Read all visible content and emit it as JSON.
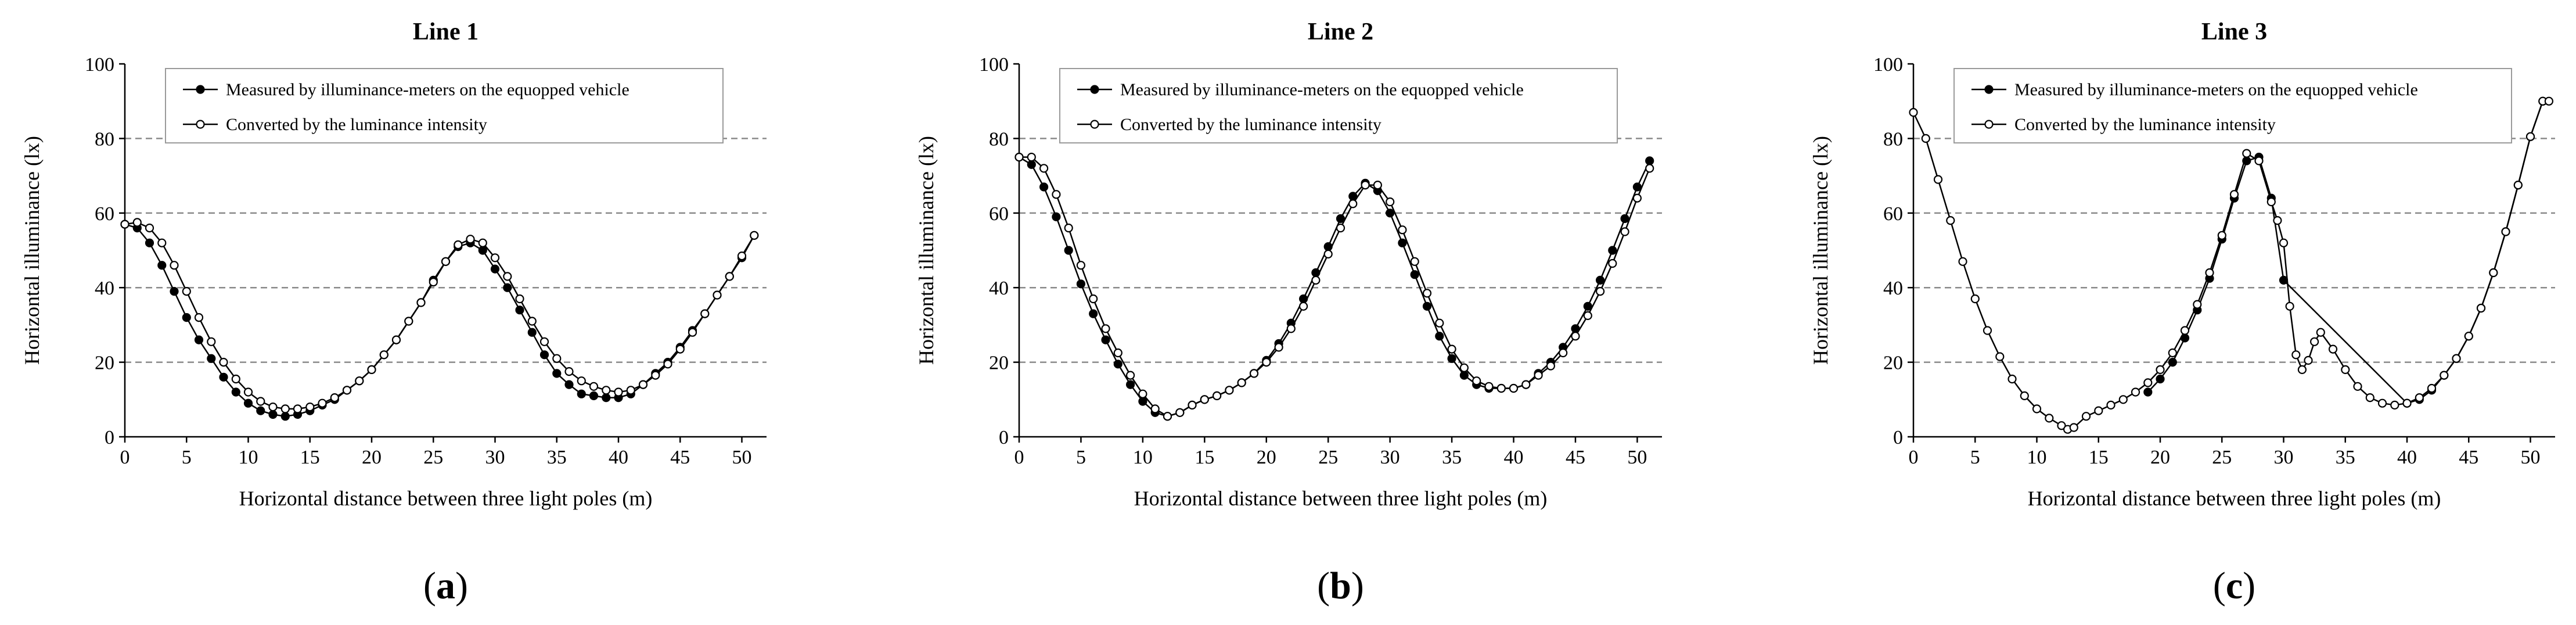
{
  "chart_data": [
    {
      "type": "line",
      "title": "Line 1",
      "panel_label": "a",
      "xlabel": "Horizontal distance between three light poles (m)",
      "ylabel": "Horizontal illuminance  (lx)",
      "xlim": [
        0,
        52
      ],
      "ylim": [
        0,
        100
      ],
      "xticks": [
        0,
        5,
        10,
        15,
        20,
        25,
        30,
        35,
        40,
        45,
        50
      ],
      "yticks": [
        0,
        20,
        40,
        60,
        80,
        100
      ],
      "grid": "dashed horizontal at 20, 40, 60, 80",
      "legend_position": "top",
      "series": [
        {
          "name": "Measured by illuminance-meters on the equopped vehicle",
          "marker": "filled-circle",
          "x": [
            0,
            1,
            2,
            3,
            4,
            5,
            6,
            7,
            8,
            9,
            10,
            11,
            12,
            13,
            14,
            15,
            16,
            17,
            18,
            19,
            20,
            21,
            22,
            23,
            24,
            25,
            26,
            27,
            28,
            29,
            30,
            31,
            32,
            33,
            34,
            35,
            36,
            37,
            38,
            39,
            40,
            41,
            42,
            43,
            44,
            45,
            46,
            47,
            48,
            49,
            50,
            51
          ],
          "values": [
            57,
            56,
            52,
            46,
            39,
            32,
            26,
            21,
            16,
            12,
            9,
            7,
            6,
            5.5,
            6,
            7,
            8.5,
            10,
            12.5,
            15,
            18,
            22,
            26,
            31,
            36,
            42,
            47,
            51,
            52,
            50,
            45,
            40,
            34,
            28,
            22,
            17,
            14,
            11.5,
            11,
            10.5,
            10.5,
            11.5,
            14,
            17,
            20,
            24,
            28.5,
            33,
            38,
            43,
            48,
            54
          ]
        },
        {
          "name": "Converted by the luminance intensity",
          "marker": "open-circle",
          "x": [
            0,
            1,
            2,
            3,
            4,
            5,
            6,
            7,
            8,
            9,
            10,
            11,
            12,
            13,
            14,
            15,
            16,
            17,
            18,
            19,
            20,
            21,
            22,
            23,
            24,
            25,
            26,
            27,
            28,
            29,
            30,
            31,
            32,
            33,
            34,
            35,
            36,
            37,
            38,
            39,
            40,
            41,
            42,
            43,
            44,
            45,
            46,
            47,
            48,
            49,
            50,
            51
          ],
          "values": [
            57,
            57.5,
            56,
            52,
            46,
            39,
            32,
            25.5,
            20,
            15.5,
            12,
            9.5,
            8,
            7.5,
            7.5,
            8,
            9,
            10.5,
            12.5,
            15,
            18,
            22,
            26,
            31,
            36,
            41.5,
            47,
            51.5,
            53,
            52,
            48,
            43,
            37,
            31,
            25.5,
            21,
            17.5,
            15,
            13.5,
            12.5,
            12,
            12.5,
            14,
            16.5,
            19.5,
            23.5,
            28,
            33,
            38,
            43,
            48.5,
            54
          ]
        }
      ]
    },
    {
      "type": "line",
      "title": "Line 2",
      "panel_label": "b",
      "xlabel": "Horizontal distance between three light poles (m)",
      "ylabel": "Horizontal illuminance  (lx)",
      "xlim": [
        0,
        52
      ],
      "ylim": [
        0,
        100
      ],
      "xticks": [
        0,
        5,
        10,
        15,
        20,
        25,
        30,
        35,
        40,
        45,
        50
      ],
      "yticks": [
        0,
        20,
        40,
        60,
        80,
        100
      ],
      "grid": "dashed horizontal at 20, 40, 60, 80",
      "legend_position": "top",
      "series": [
        {
          "name": "Measured by illuminance-meters on the equopped vehicle",
          "marker": "filled-circle",
          "x": [
            0,
            1,
            2,
            3,
            4,
            5,
            6,
            7,
            8,
            9,
            10,
            11,
            12,
            13,
            14,
            15,
            16,
            17,
            18,
            19,
            20,
            21,
            22,
            23,
            24,
            25,
            26,
            27,
            28,
            29,
            30,
            31,
            32,
            33,
            34,
            35,
            36,
            37,
            38,
            39,
            40,
            41,
            42,
            43,
            44,
            45,
            46,
            47,
            48,
            49,
            50,
            51
          ],
          "values": [
            75,
            73,
            67,
            59,
            50,
            41,
            33,
            26,
            19.5,
            14,
            9.5,
            6.5,
            5.5,
            6.5,
            8.5,
            10,
            11,
            12.5,
            14.5,
            17,
            20.5,
            25,
            30.5,
            37,
            44,
            51,
            58.5,
            64.5,
            68,
            66,
            60,
            52,
            43.5,
            35,
            27,
            21,
            16.5,
            14,
            13,
            13,
            13,
            14,
            17,
            20,
            24,
            29,
            35,
            42,
            50,
            58.5,
            67,
            74
          ]
        },
        {
          "name": "Converted by the luminance intensity",
          "marker": "open-circle",
          "x": [
            0,
            1,
            2,
            3,
            4,
            5,
            6,
            7,
            8,
            9,
            10,
            11,
            12,
            13,
            14,
            15,
            16,
            17,
            18,
            19,
            20,
            21,
            22,
            23,
            24,
            25,
            26,
            27,
            28,
            29,
            30,
            31,
            32,
            33,
            34,
            35,
            36,
            37,
            38,
            39,
            40,
            41,
            42,
            43,
            44,
            45,
            46,
            47,
            48,
            49,
            50,
            51
          ],
          "values": [
            75,
            75,
            72,
            65,
            56,
            46,
            37,
            29,
            22.5,
            16.5,
            11.5,
            7.5,
            5.5,
            6.5,
            8.5,
            10,
            11,
            12.5,
            14.5,
            17,
            20,
            24,
            29,
            35,
            42,
            49,
            56,
            62.5,
            67.5,
            67.5,
            63,
            55.5,
            47,
            38.5,
            30.5,
            23.5,
            18.5,
            15,
            13.5,
            13,
            13,
            14,
            16.5,
            19,
            22.5,
            27,
            32.5,
            39,
            46.5,
            55,
            64,
            72
          ]
        }
      ]
    },
    {
      "type": "line",
      "title": "Line 3",
      "panel_label": "c",
      "xlabel": "Horizontal distance between three light poles (m)",
      "ylabel": "Horizontal illuminance  (lx)",
      "xlim": [
        0,
        52
      ],
      "ylim": [
        0,
        100
      ],
      "xticks": [
        0,
        5,
        10,
        15,
        20,
        25,
        30,
        35,
        40,
        45,
        50
      ],
      "yticks": [
        0,
        20,
        40,
        60,
        80,
        100
      ],
      "grid": "dashed horizontal at 20, 40, 60, 80",
      "legend_position": "top",
      "series": [
        {
          "name": "Measured by illuminance-meters on the equopped vehicle",
          "marker": "filled-circle",
          "x": [
            19,
            20,
            21,
            22,
            23,
            24,
            25,
            26,
            27,
            28,
            29,
            30,
            40,
            41,
            42,
            43,
            44,
            45,
            46,
            47,
            48,
            49,
            50,
            51
          ],
          "values": [
            12,
            15.5,
            20,
            26.5,
            34,
            42.5,
            53,
            64,
            74,
            75,
            64,
            42,
            9,
            10,
            12.5,
            16.5,
            21,
            27,
            34.5,
            44,
            55,
            67.5,
            80.5,
            90
          ]
        },
        {
          "name": "Converted by the luminance intensity",
          "marker": "open-circle",
          "x": [
            0,
            1,
            2,
            3,
            4,
            5,
            6,
            7,
            8,
            9,
            10,
            11,
            12,
            12.5,
            13,
            14,
            15,
            16,
            17,
            18,
            19,
            20,
            21,
            22,
            23,
            24,
            25,
            26,
            27,
            28,
            29,
            29.5,
            30,
            30.5,
            31,
            31.5,
            32,
            32.5,
            33,
            34,
            35,
            36,
            37,
            38,
            39,
            40,
            41,
            42,
            43,
            44,
            45,
            46,
            47,
            48,
            49,
            50,
            51,
            51.5
          ],
          "values": [
            87,
            80,
            69,
            58,
            47,
            37,
            28.5,
            21.5,
            15.5,
            11,
            7.5,
            5,
            3,
            2,
            2.5,
            5.5,
            7,
            8.5,
            10,
            12,
            14.5,
            18,
            22.5,
            28.5,
            35.5,
            44,
            54,
            65,
            76,
            74,
            63,
            58,
            52,
            35,
            22,
            18,
            20.5,
            25.5,
            28,
            23.5,
            18,
            13.5,
            10.5,
            9,
            8.5,
            9,
            10.5,
            13,
            16.5,
            21,
            27,
            34.5,
            44,
            55,
            67.5,
            80.5,
            90,
            90
          ]
        }
      ]
    }
  ]
}
